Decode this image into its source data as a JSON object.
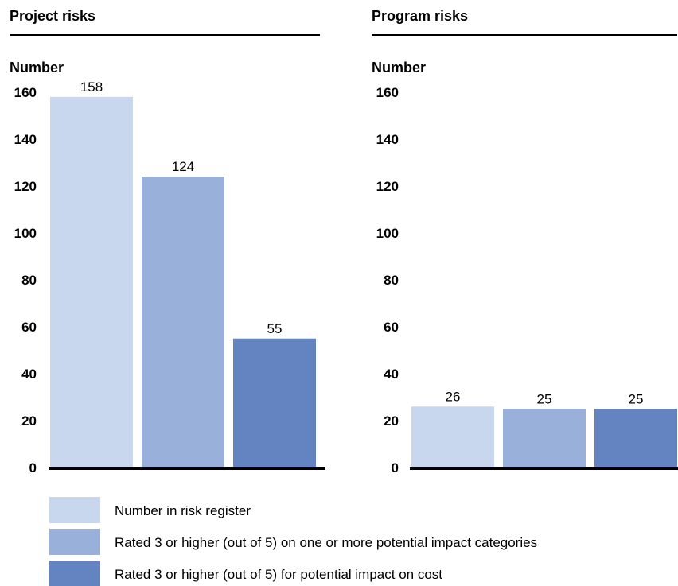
{
  "chart_data": [
    {
      "type": "bar",
      "title": "Project risks",
      "ylabel": "Number",
      "ylim": [
        0,
        160
      ],
      "yticks": [
        0,
        20,
        40,
        60,
        80,
        100,
        120,
        140,
        160
      ],
      "categories": [
        "Number in risk register",
        "Rated 3 or higher (out of 5) on one or more potential impact categories",
        "Rated 3 or higher (out of 5) for potential impact on cost"
      ],
      "values": [
        158,
        124,
        55
      ],
      "colors": [
        "#c8d6ee",
        "#98b0da",
        "#6383c1"
      ]
    },
    {
      "type": "bar",
      "title": "Program risks",
      "ylabel": "Number",
      "ylim": [
        0,
        160
      ],
      "yticks": [
        0,
        20,
        40,
        60,
        80,
        100,
        120,
        140,
        160
      ],
      "categories": [
        "Number in risk register",
        "Rated 3 or higher (out of 5) on one or more potential impact categories",
        "Rated 3 or higher (out of 5) for potential impact on cost"
      ],
      "values": [
        26,
        25,
        25
      ],
      "colors": [
        "#c8d6ee",
        "#98b0da",
        "#6383c1"
      ]
    }
  ],
  "legend": [
    {
      "label": "Number in risk register",
      "color": "#c8d6ee"
    },
    {
      "label": "Rated 3 or higher (out of 5) on one or more potential impact categories",
      "color": "#98b0da"
    },
    {
      "label": "Rated 3 or higher (out of 5) for potential impact on cost",
      "color": "#6383c1"
    }
  ]
}
